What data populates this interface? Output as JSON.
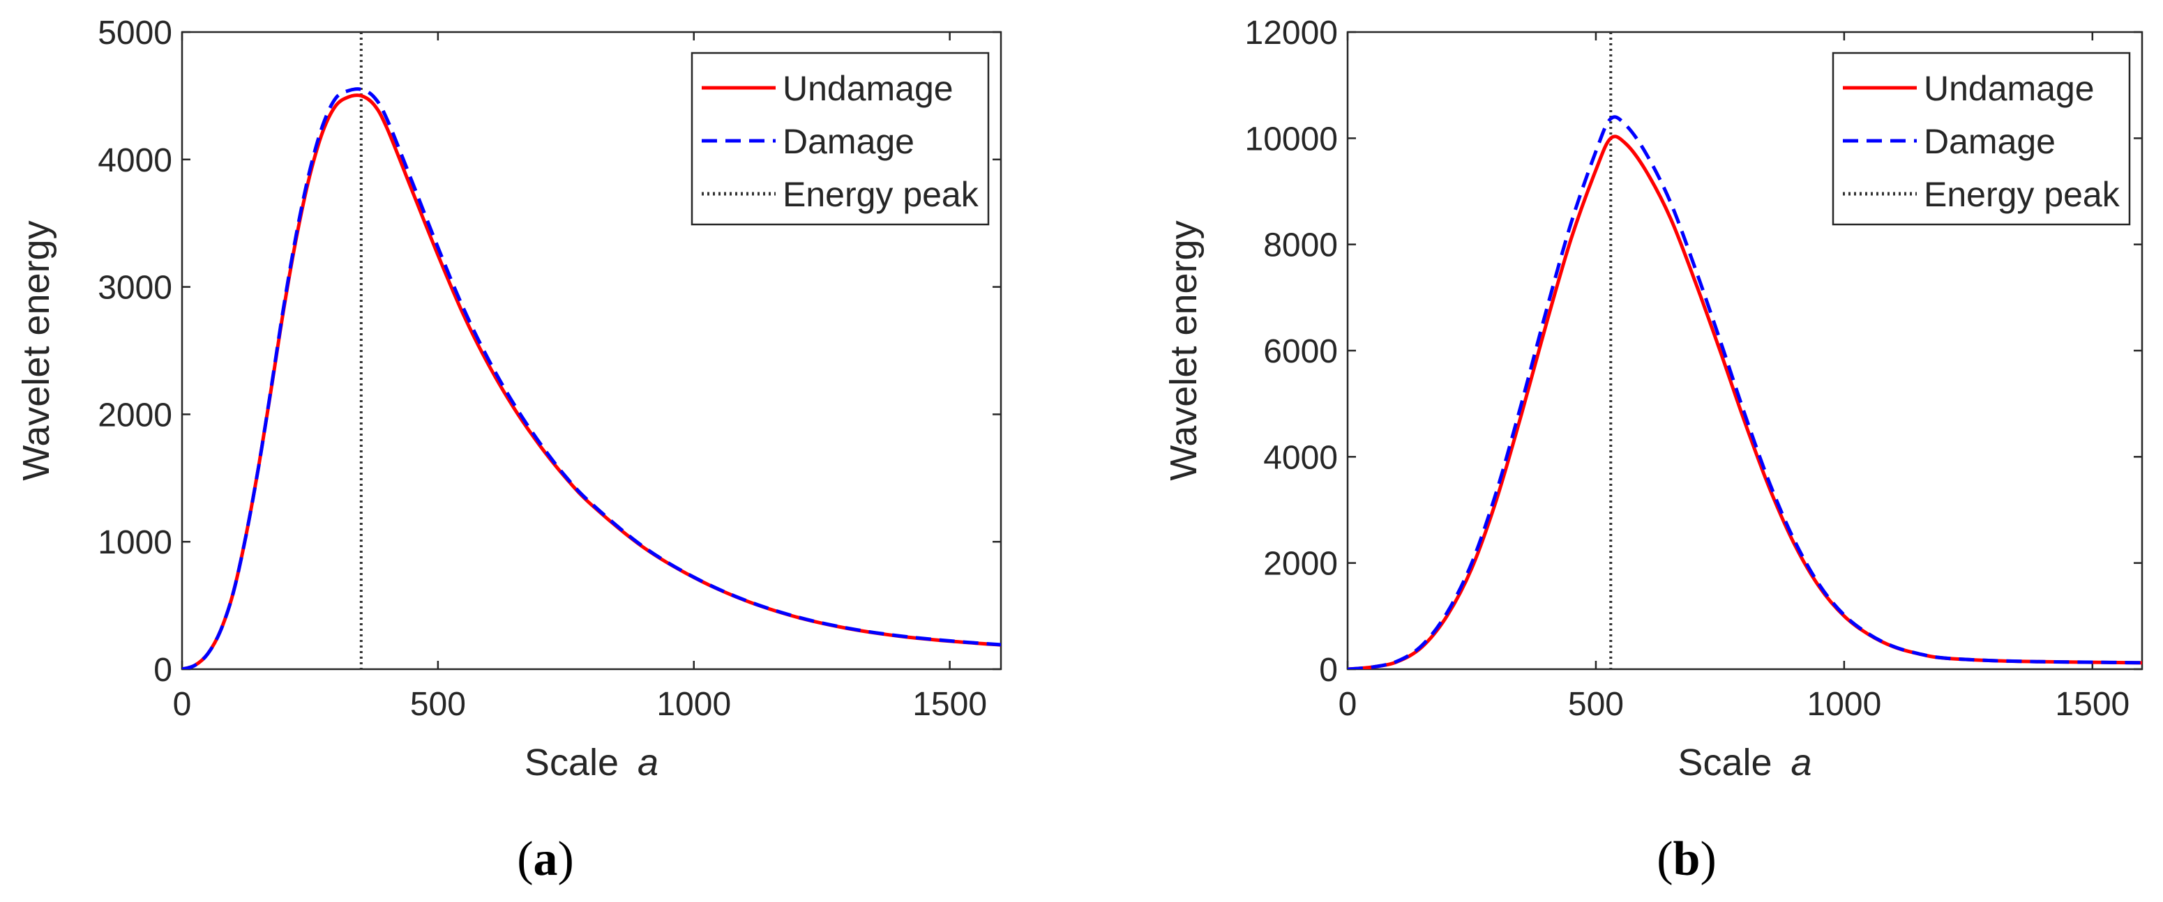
{
  "chart_data": [
    {
      "type": "line",
      "panel_label": "(a)",
      "panel_letter": "a",
      "xlabel": "Scale",
      "xlabel_var": "a",
      "ylabel": "Wavelet energy",
      "xlim": [
        0,
        1600
      ],
      "ylim": [
        0,
        5000
      ],
      "xticks": [
        0,
        500,
        1000,
        1500
      ],
      "yticks": [
        0,
        1000,
        2000,
        3000,
        4000,
        5000
      ],
      "energy_peak_x": 350,
      "legend_position": "top-right",
      "legend": [
        "Undamage",
        "Damage",
        "Energy peak"
      ],
      "series": [
        {
          "name": "Undamage",
          "color": "#ff0000",
          "style": "solid",
          "x": [
            0,
            25,
            50,
            75,
            100,
            125,
            150,
            175,
            200,
            225,
            250,
            275,
            300,
            325,
            350,
            375,
            400,
            450,
            500,
            550,
            600,
            650,
            700,
            750,
            800,
            900,
            1000,
            1100,
            1200,
            1300,
            1400,
            1500,
            1600
          ],
          "y": [
            0,
            30,
            120,
            300,
            600,
            1050,
            1600,
            2220,
            2860,
            3420,
            3880,
            4220,
            4420,
            4490,
            4500,
            4430,
            4250,
            3750,
            3250,
            2780,
            2380,
            2040,
            1750,
            1500,
            1290,
            960,
            720,
            540,
            410,
            320,
            260,
            220,
            190
          ]
        },
        {
          "name": "Damage",
          "color": "#0000ff",
          "style": "dashed",
          "x": [
            0,
            25,
            50,
            75,
            100,
            125,
            150,
            175,
            200,
            225,
            250,
            275,
            300,
            325,
            350,
            375,
            400,
            450,
            500,
            550,
            600,
            650,
            700,
            750,
            800,
            900,
            1000,
            1100,
            1200,
            1300,
            1400,
            1500,
            1600
          ],
          "y": [
            0,
            30,
            120,
            300,
            600,
            1050,
            1600,
            2230,
            2880,
            3450,
            3920,
            4270,
            4480,
            4540,
            4550,
            4490,
            4320,
            3820,
            3310,
            2830,
            2420,
            2070,
            1770,
            1510,
            1300,
            965,
            722,
            542,
            412,
            322,
            262,
            222,
            192
          ]
        }
      ]
    },
    {
      "type": "line",
      "panel_label": "(b)",
      "panel_letter": "b",
      "xlabel": "Scale",
      "xlabel_var": "a",
      "ylabel": "Wavelet energy",
      "xlim": [
        0,
        1600
      ],
      "ylim": [
        0,
        12000
      ],
      "xticks": [
        0,
        500,
        1000,
        1500
      ],
      "yticks": [
        0,
        2000,
        4000,
        6000,
        8000,
        10000,
        12000
      ],
      "energy_peak_x": 530,
      "legend_position": "top-right",
      "legend": [
        "Undamage",
        "Damage",
        "Energy peak"
      ],
      "series": [
        {
          "name": "Undamage",
          "color": "#ff0000",
          "style": "solid",
          "x": [
            0,
            50,
            100,
            150,
            200,
            250,
            300,
            350,
            400,
            450,
            500,
            530,
            560,
            600,
            650,
            700,
            750,
            800,
            850,
            900,
            950,
            1000,
            1050,
            1100,
            1150,
            1200,
            1300,
            1400,
            1500,
            1600
          ],
          "y": [
            0,
            40,
            140,
            420,
            1000,
            1900,
            3200,
            4800,
            6500,
            8100,
            9400,
            10000,
            9900,
            9400,
            8500,
            7300,
            6000,
            4650,
            3400,
            2350,
            1550,
            1000,
            650,
            420,
            290,
            210,
            160,
            140,
            130,
            120
          ]
        },
        {
          "name": "Damage",
          "color": "#0000ff",
          "style": "dashed",
          "x": [
            0,
            50,
            100,
            150,
            200,
            250,
            300,
            350,
            400,
            450,
            500,
            530,
            560,
            600,
            650,
            700,
            750,
            800,
            850,
            900,
            950,
            1000,
            1050,
            1100,
            1150,
            1200,
            1300,
            1400,
            1500,
            1600
          ],
          "y": [
            0,
            40,
            150,
            450,
            1060,
            2000,
            3350,
            5000,
            6750,
            8400,
            9750,
            10370,
            10250,
            9730,
            8800,
            7550,
            6200,
            4800,
            3500,
            2420,
            1590,
            1020,
            660,
            425,
            292,
            211,
            161,
            141,
            131,
            121
          ]
        }
      ]
    }
  ]
}
